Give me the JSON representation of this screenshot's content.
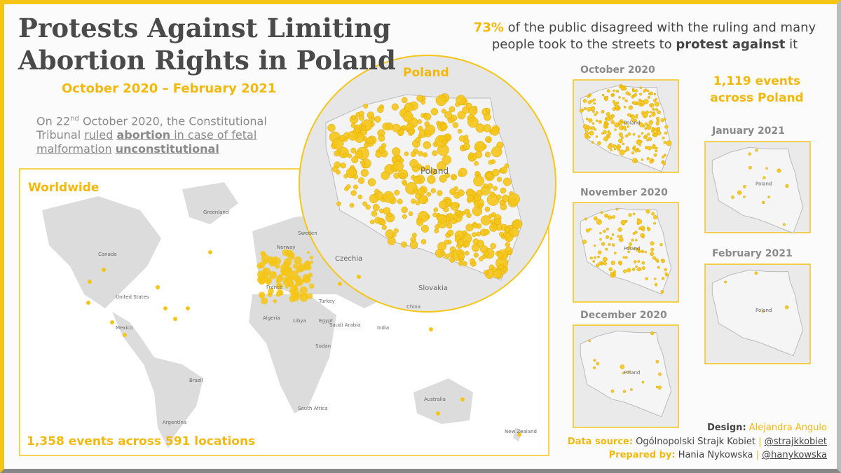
{
  "title": [
    "Protests Against Limiting",
    "Abortion Rights in Poland"
  ],
  "subtitle": "October 2020 – February 2021",
  "intro": {
    "pre": "On 22",
    "sup": "nd",
    "mid": " October 2020, the Constitutional Tribunal ",
    "ruled": "ruled",
    "abortion": "abortion",
    "case": " in case of fetal malformation",
    "unconstitutional": "unconstitutional"
  },
  "headline": {
    "percent": "73%",
    "part1": " of the public disagreed with the ruling and many people took to the streets to ",
    "protest": "protest against",
    "part2": " it"
  },
  "worldwide": {
    "label": "Worldwide",
    "footer": "1,358 events across 591 locations",
    "map_labels": [
      "Greenland",
      "Canada",
      "United States",
      "Mexico",
      "Brazil",
      "Argentina",
      "Algeria",
      "Libya",
      "Egypt",
      "Saudi Arabia",
      "India",
      "China",
      "Australia",
      "New Zealand",
      "Turkey",
      "Sweden",
      "Norway",
      "France",
      "Sudan",
      "South Africa"
    ]
  },
  "poland_zoom": {
    "label": "Poland",
    "map_labels": [
      "Poland",
      "Czechia",
      "Slovakia"
    ]
  },
  "months": [
    {
      "label": "October 2020",
      "map_label": "Poland"
    },
    {
      "label": "November 2020",
      "map_label": "Poland"
    },
    {
      "label": "December 2020",
      "map_label": "Poland"
    },
    {
      "label": "January 2021",
      "map_label": "Poland"
    },
    {
      "label": "February 2021",
      "map_label": "Poland"
    }
  ],
  "poland_events": [
    "1,119 events",
    "across Poland"
  ],
  "credits": {
    "design_label": "Design:",
    "design": "Alejandra Angulo",
    "source_label": "Data source:",
    "source": "Ogólnopolski Strajk Kobiet",
    "source_handle": "@strajkkobiet",
    "prepared_label": "Prepared by:",
    "prepared": "Hania Nykowska",
    "prepared_handle": "@hanykowska"
  }
}
